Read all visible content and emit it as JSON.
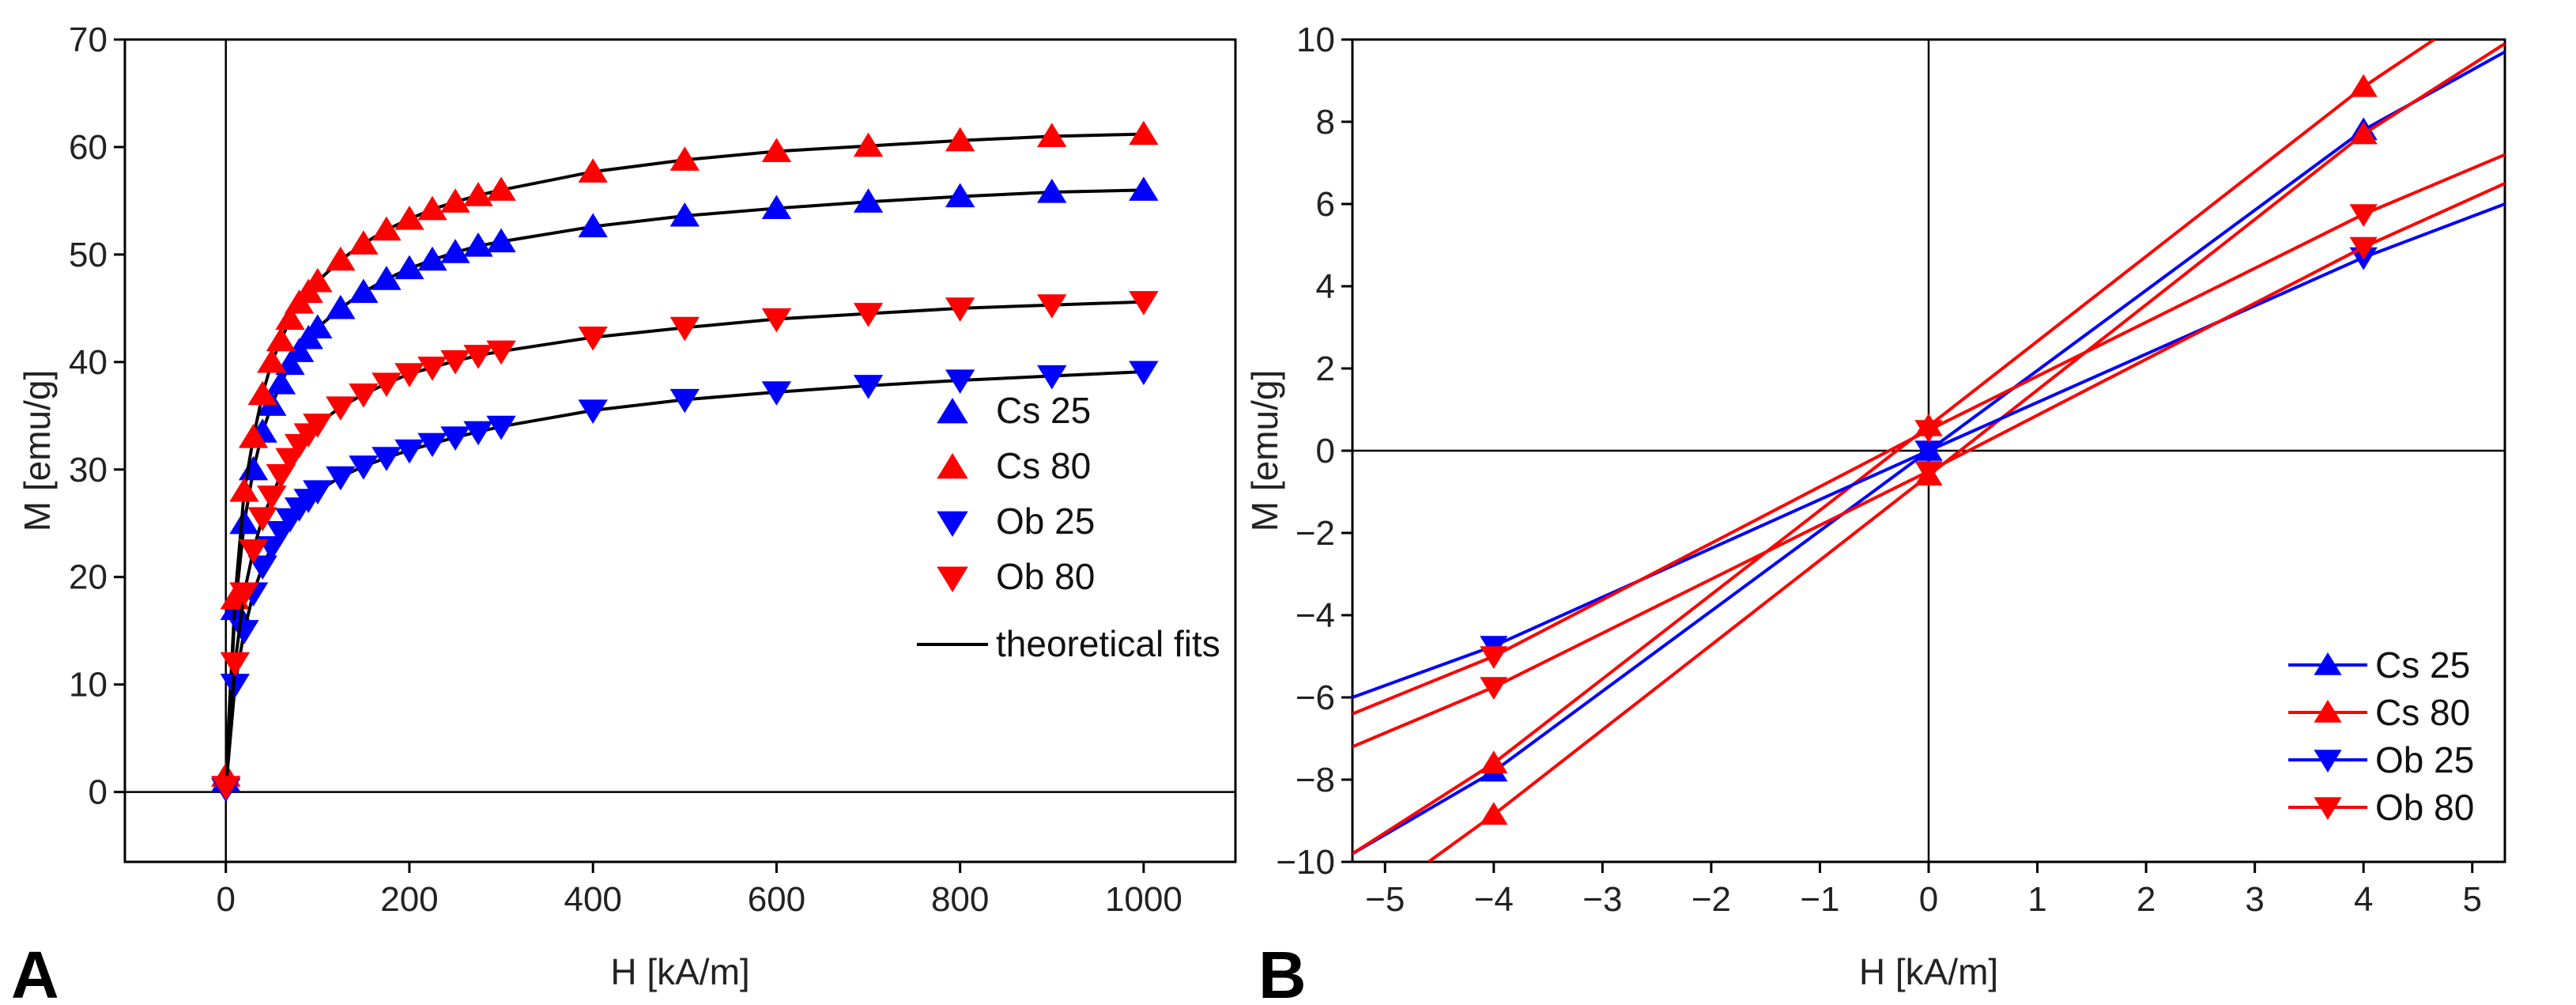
{
  "chart_data": [
    {
      "panel": "A",
      "type": "scatter",
      "xlabel": "H [kA/m]",
      "ylabel": "M [emu/g]",
      "xlim": [
        -110,
        1100
      ],
      "ylim": [
        -6.5,
        70
      ],
      "xticks": [
        0,
        200,
        400,
        600,
        800,
        1000
      ],
      "yticks": [
        0,
        10,
        20,
        30,
        40,
        50,
        60,
        70
      ],
      "legend_position": "bottom-right",
      "x": [
        0,
        10,
        20,
        30,
        40,
        50,
        60,
        70,
        80,
        90,
        100,
        125,
        150,
        175,
        200,
        225,
        250,
        275,
        300,
        400,
        500,
        600,
        700,
        800,
        900,
        1000
      ],
      "series": [
        {
          "name": "Cs 25",
          "color": "#0000ff",
          "marker": "up",
          "values": [
            1,
            17,
            25,
            30,
            33.5,
            36,
            38,
            39.8,
            41,
            42.2,
            43.2,
            45,
            46.5,
            47.7,
            48.7,
            49.5,
            50.2,
            50.8,
            51.2,
            52.6,
            53.6,
            54.3,
            54.9,
            55.4,
            55.8,
            56
          ]
        },
        {
          "name": "Cs 80",
          "color": "#ff0000",
          "marker": "up",
          "values": [
            1.5,
            18,
            28,
            33,
            37,
            40,
            42,
            44,
            45.5,
            46.5,
            47.5,
            49.5,
            51,
            52.3,
            53.3,
            54.2,
            54.9,
            55.5,
            56,
            57.7,
            58.8,
            59.6,
            60.1,
            60.6,
            61,
            61.2
          ]
        },
        {
          "name": "Ob 25",
          "color": "#0000ff",
          "marker": "down",
          "values": [
            0.3,
            10,
            15,
            18.5,
            21,
            22.8,
            24.2,
            25.4,
            26.4,
            27.2,
            28,
            29.3,
            30.3,
            31.1,
            31.8,
            32.4,
            33,
            33.5,
            34,
            35.5,
            36.5,
            37.2,
            37.8,
            38.3,
            38.7,
            39.1
          ]
        },
        {
          "name": "Ob 80",
          "color": "#ff0000",
          "marker": "down",
          "values": [
            0.5,
            12,
            18.5,
            22.5,
            25.5,
            27.5,
            29.5,
            31,
            32.3,
            33.3,
            34.2,
            35.8,
            37,
            38,
            38.9,
            39.5,
            40.1,
            40.6,
            41,
            42.3,
            43.2,
            44,
            44.5,
            45,
            45.3,
            45.6
          ]
        }
      ],
      "fit_label": "theoretical fits"
    },
    {
      "panel": "B",
      "type": "line",
      "xlabel": "H [kA/m]",
      "ylabel": "M [emu/g]",
      "xlim": [
        -5.3,
        5.3
      ],
      "ylim": [
        -10,
        10
      ],
      "xticks": [
        -5,
        -4,
        -3,
        -2,
        -1,
        0,
        1,
        2,
        3,
        4,
        5
      ],
      "yticks": [
        -10,
        -8,
        -6,
        -4,
        -2,
        0,
        2,
        4,
        6,
        8,
        10
      ],
      "legend_position": "bottom-right",
      "series": [
        {
          "name": "Cs 25",
          "color": "#0000ff",
          "marker": "up",
          "branches": [
            [
              [
                -5.3,
                -9.8
              ],
              [
                -4,
                -7.8
              ],
              [
                0,
                0
              ],
              [
                4,
                7.8
              ],
              [
                5.3,
                9.7
              ]
            ]
          ]
        },
        {
          "name": "Cs 80",
          "color": "#ff0000",
          "marker": "up",
          "branches": [
            [
              [
                -5.3,
                -9.8
              ],
              [
                -4,
                -7.6
              ],
              [
                0,
                0.6
              ],
              [
                4,
                8.85
              ],
              [
                4.65,
                10
              ]
            ],
            [
              [
                -4.6,
                -10
              ],
              [
                -4,
                -8.85
              ],
              [
                0,
                -0.6
              ],
              [
                4,
                7.7
              ],
              [
                5.3,
                9.9
              ]
            ]
          ]
        },
        {
          "name": "Ob 25",
          "color": "#0000ff",
          "marker": "down",
          "branches": [
            [
              [
                -5.3,
                -6
              ],
              [
                -4,
                -4.75
              ],
              [
                0,
                0
              ],
              [
                4,
                4.7
              ],
              [
                5.3,
                6
              ]
            ]
          ]
        },
        {
          "name": "Ob 80",
          "color": "#ff0000",
          "marker": "down",
          "branches": [
            [
              [
                -5.3,
                -6.4
              ],
              [
                -4,
                -5
              ],
              [
                0,
                0.5
              ],
              [
                4,
                5.75
              ],
              [
                5.3,
                7.2
              ]
            ],
            [
              [
                -5.3,
                -7.2
              ],
              [
                -4,
                -5.75
              ],
              [
                0,
                -0.5
              ],
              [
                4,
                4.95
              ],
              [
                5.3,
                6.5
              ]
            ]
          ]
        }
      ]
    }
  ]
}
